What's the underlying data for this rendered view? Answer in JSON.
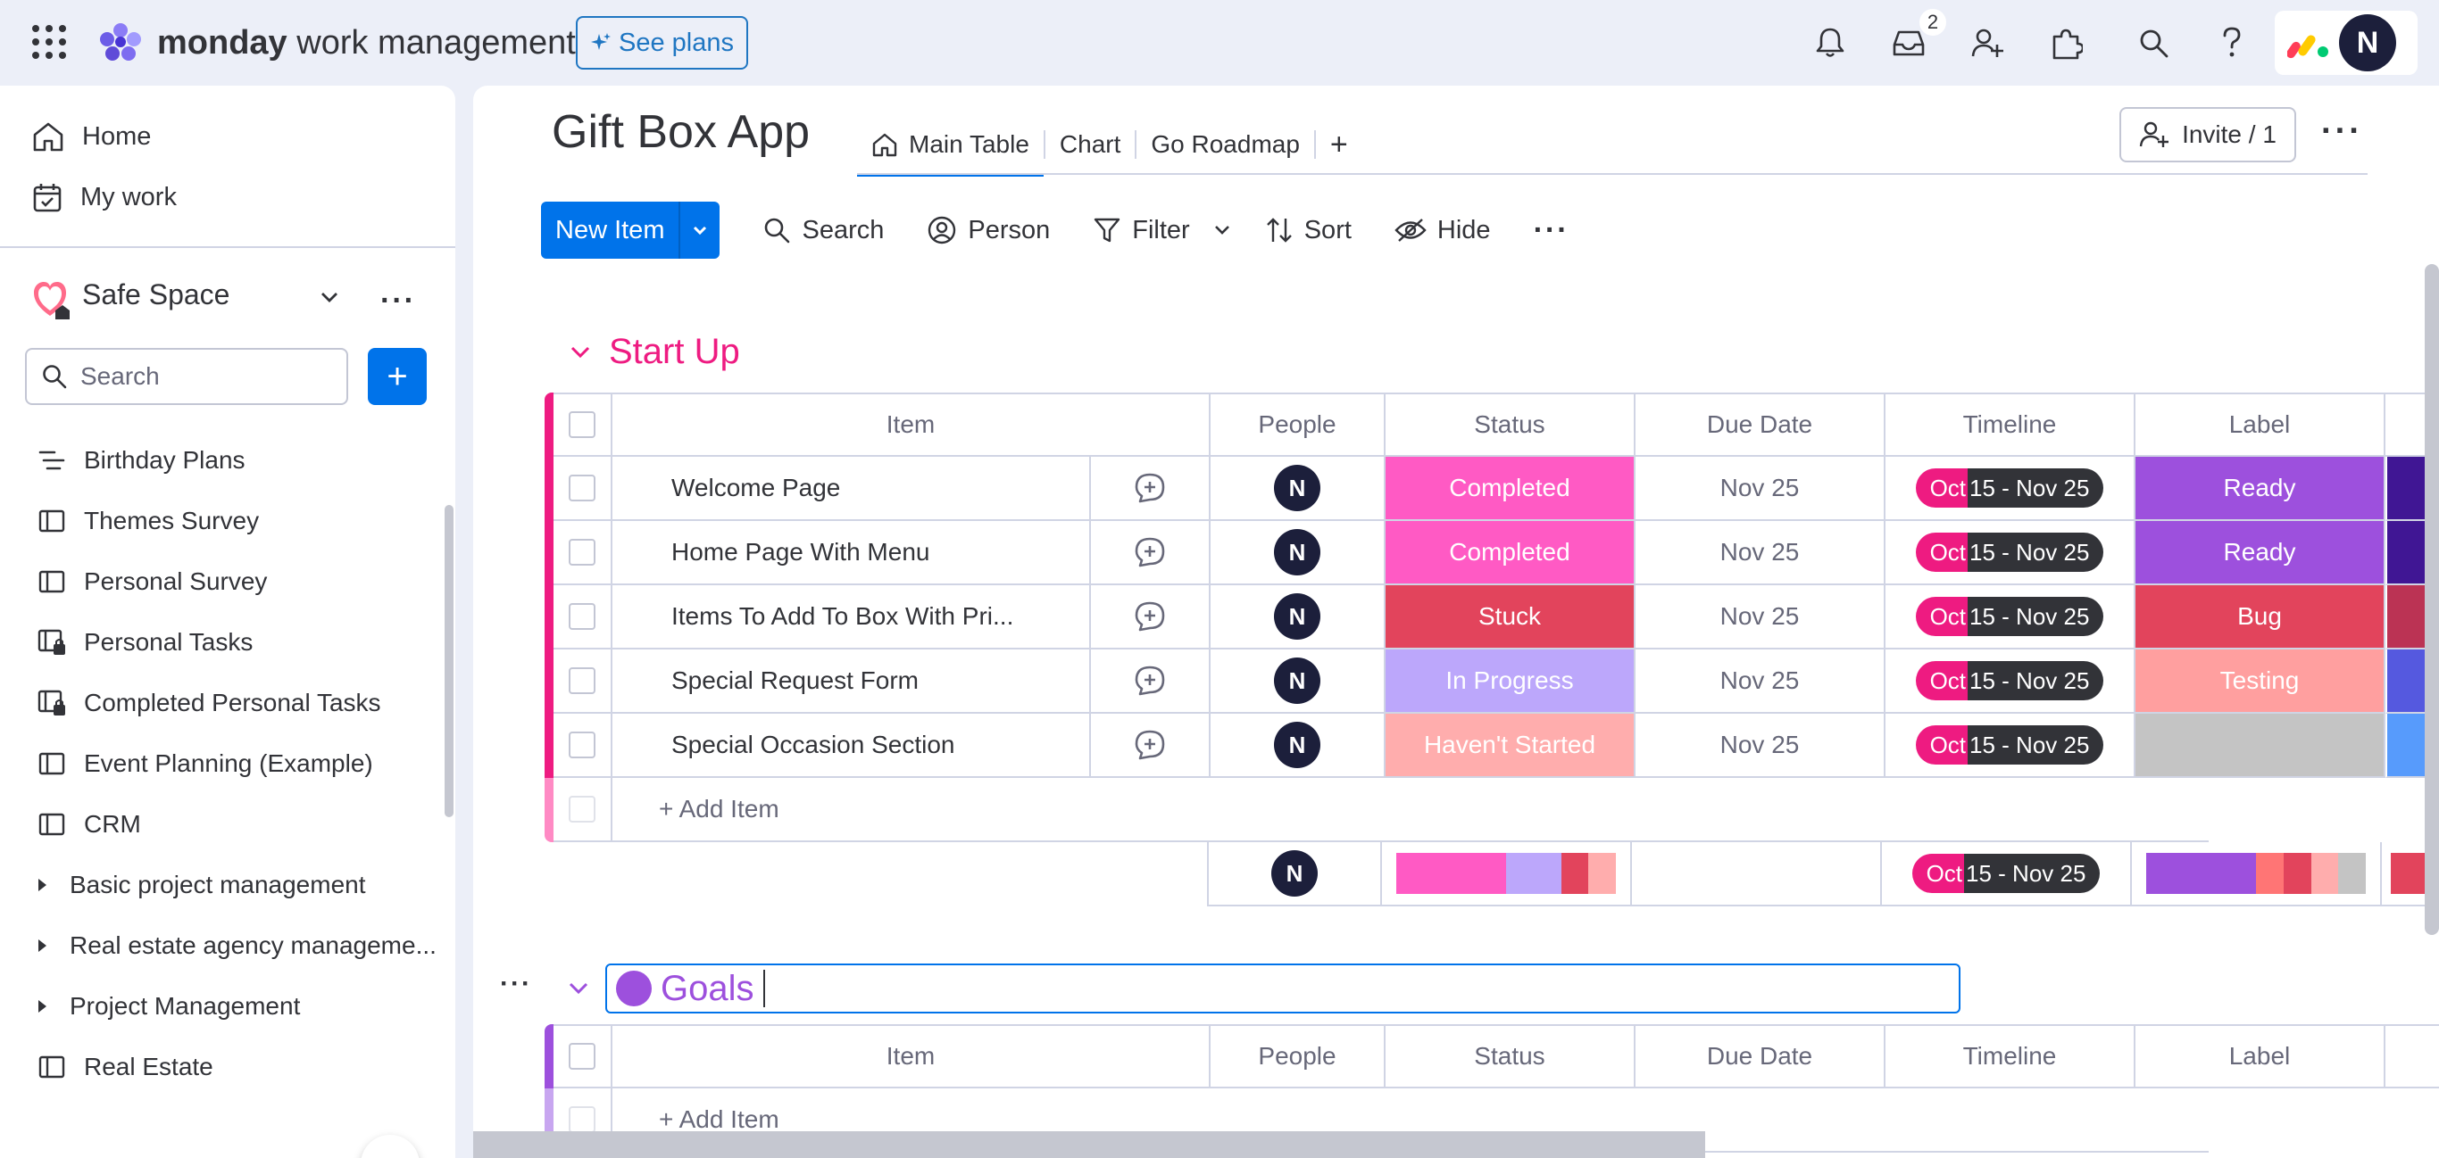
{
  "topbar": {
    "brand_bold": "monday",
    "brand_rest": " work management",
    "see_plans": "See plans",
    "inbox_badge": "2",
    "avatar": "N"
  },
  "sidebar": {
    "home": "Home",
    "my_work": "My work",
    "workspace": "Safe Space",
    "search_placeholder": "Search",
    "items": [
      {
        "label": "Birthday Plans",
        "icon": "board-list-icon"
      },
      {
        "label": "Themes Survey",
        "icon": "board-icon"
      },
      {
        "label": "Personal Survey",
        "icon": "board-icon"
      },
      {
        "label": "Personal Tasks",
        "icon": "private-board-icon"
      },
      {
        "label": "Completed Personal Tasks",
        "icon": "private-board-icon"
      },
      {
        "label": "Event Planning (Example)",
        "icon": "board-icon"
      },
      {
        "label": "CRM",
        "icon": "board-icon"
      },
      {
        "label": "Basic project management",
        "icon": "folder-caret-icon"
      },
      {
        "label": "Real estate agency manageme...",
        "icon": "folder-caret-icon"
      },
      {
        "label": "Project Management",
        "icon": "folder-caret-icon"
      },
      {
        "label": "Real Estate",
        "icon": "board-icon"
      }
    ]
  },
  "board": {
    "title": "Gift Box App",
    "tabs": [
      "Main Table",
      "Chart",
      "Go Roadmap"
    ],
    "add_tab": "+",
    "invite": "Invite / 1"
  },
  "toolbar": {
    "new_item": "New Item",
    "search": "Search",
    "person": "Person",
    "filter": "Filter",
    "sort": "Sort",
    "hide": "Hide"
  },
  "columns": [
    "Item",
    "People",
    "Status",
    "Due Date",
    "Timeline",
    "Label"
  ],
  "colors": {
    "startup_group": "#ee1b81",
    "goals_group": "#9d50dd",
    "completed": "#ff5ac4",
    "stuck": "#e2445c",
    "in_progress": "#bca7fb",
    "not_started": "#ffadad",
    "ready": "#9d50dd",
    "bug": "#e2445c",
    "testing": "#ff9f9f",
    "empty_label": "#c4c4c4"
  },
  "group_startup": {
    "name": "Start Up",
    "rows": [
      {
        "item": "Welcome Page",
        "person": "N",
        "status": "Completed",
        "status_color": "#ff5ac4",
        "due": "Nov 25",
        "tl_a": "Oct",
        "tl_b": "15 - Nov 25",
        "label": "Ready",
        "label_color": "#9d50dd",
        "extra_color": "#401694"
      },
      {
        "item": "Home Page With Menu",
        "person": "N",
        "status": "Completed",
        "status_color": "#ff5ac4",
        "due": "Nov 25",
        "tl_a": "Oct",
        "tl_b": "15 - Nov 25",
        "label": "Ready",
        "label_color": "#9d50dd",
        "extra_color": "#401694"
      },
      {
        "item": "Items To Add To Box With Pri...",
        "person": "N",
        "status": "Stuck",
        "status_color": "#e2445c",
        "due": "Nov 25",
        "tl_a": "Oct",
        "tl_b": "15 - Nov 25",
        "label": "Bug",
        "label_color": "#e2445c",
        "extra_color": "#bb3354"
      },
      {
        "item": "Special Request Form",
        "person": "N",
        "status": "In Progress",
        "status_color": "#bca7fb",
        "due": "Nov 25",
        "tl_a": "Oct",
        "tl_b": "15 - Nov 25",
        "label": "Testing",
        "label_color": "#ff9f9f",
        "extra_color": "#5559df"
      },
      {
        "item": "Special Occasion Section",
        "person": "N",
        "status": "Haven't Started",
        "status_color": "#ffadad",
        "due": "Nov 25",
        "tl_a": "Oct",
        "tl_b": "15 - Nov 25",
        "label": "",
        "label_color": "#c4c4c4",
        "extra_color": "#579bfc"
      }
    ],
    "add_item": "+ Add Item",
    "summary": {
      "person": "N",
      "tl_a": "Oct",
      "tl_b": "15 - Nov 25",
      "status_bar": [
        {
          "color": "#ff5ac4",
          "pct": 50
        },
        {
          "color": "#bca7fb",
          "pct": 25
        },
        {
          "color": "#e2445c",
          "pct": 12.5
        },
        {
          "color": "#ffadad",
          "pct": 12.5
        }
      ],
      "label_bar": [
        {
          "color": "#9d50dd",
          "pct": 50
        },
        {
          "color": "#ff7575",
          "pct": 12.5
        },
        {
          "color": "#e2445c",
          "pct": 12.5
        },
        {
          "color": "#ffadad",
          "pct": 12.5
        },
        {
          "color": "#c4c4c4",
          "pct": 12.5
        }
      ]
    }
  },
  "group_goals": {
    "name": "Goals",
    "add_item": "+ Add Item"
  }
}
